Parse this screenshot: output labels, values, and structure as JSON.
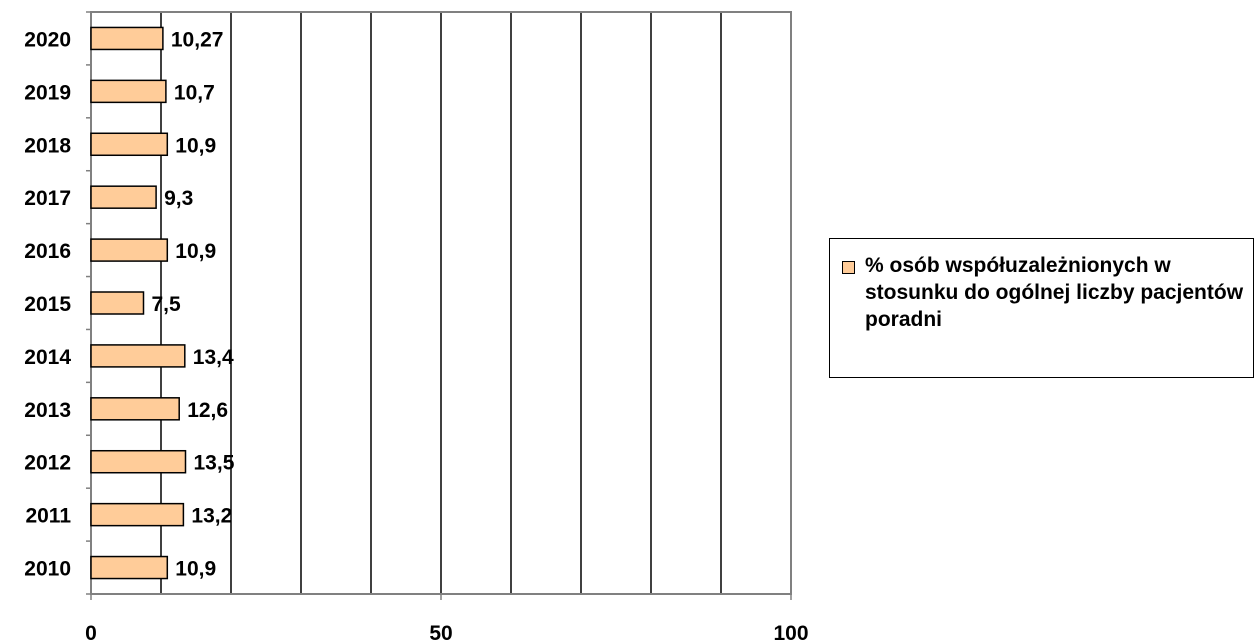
{
  "chart_data": {
    "type": "bar",
    "orientation": "horizontal",
    "categories": [
      "2010",
      "2011",
      "2012",
      "2013",
      "2014",
      "2015",
      "2016",
      "2017",
      "2018",
      "2019",
      "2020"
    ],
    "series": [
      {
        "name": "% osób współuzależnionych w stosunku do ogólnej liczby pacjentów poradni",
        "values": [
          10.9,
          13.2,
          13.5,
          12.6,
          13.4,
          7.5,
          10.9,
          9.3,
          10.9,
          10.7,
          10.27
        ],
        "labels": [
          "10,9",
          "13,2",
          "13,5",
          "12,6",
          "13,4",
          "7,5",
          "10,9",
          "9,3",
          "10,9",
          "10,7",
          "10,27"
        ]
      }
    ],
    "xlim": [
      0,
      100
    ],
    "xticks": [
      0,
      50,
      100
    ],
    "xtick_labels": [
      "0",
      "50",
      "100"
    ],
    "gridlines": [
      10,
      20,
      30,
      40,
      50,
      60,
      70,
      80,
      90
    ],
    "grid": true,
    "legend": "right",
    "colors": {
      "bar_fill": "#FFCC99",
      "bar_stroke": "#000000",
      "grid": "#000000",
      "axis": "#808080"
    }
  }
}
